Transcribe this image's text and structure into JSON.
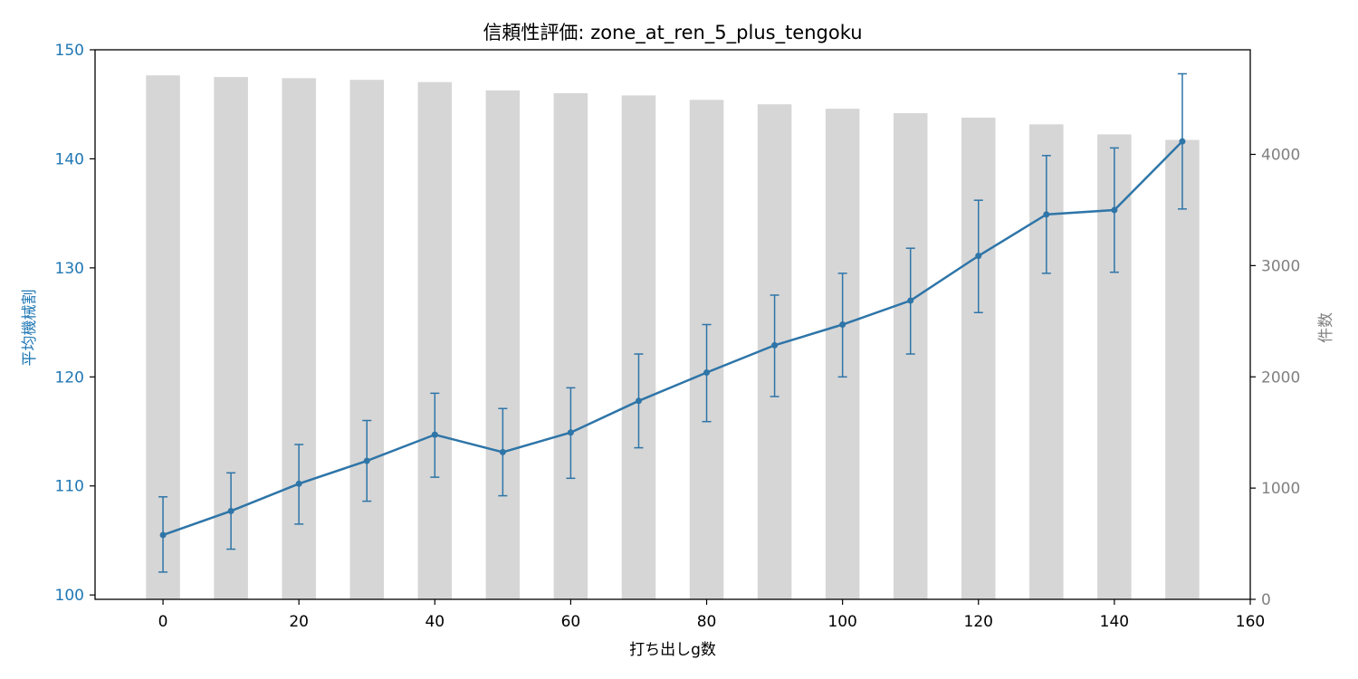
{
  "chart_data": {
    "type": "bar+line",
    "title": "信頼性評価: zone_at_ren_5_plus_tengoku",
    "xlabel": "打ち出しg数",
    "ylabel_left": "平均機械割",
    "ylabel_right": "件数",
    "x": [
      0,
      10,
      20,
      30,
      40,
      50,
      60,
      70,
      80,
      90,
      100,
      110,
      120,
      130,
      140,
      150
    ],
    "xlim": [
      -10,
      160
    ],
    "xticks": [
      0,
      20,
      40,
      60,
      80,
      100,
      120,
      140,
      160
    ],
    "bars": {
      "name": "件数",
      "values": [
        4710,
        4695,
        4685,
        4670,
        4650,
        4575,
        4550,
        4530,
        4490,
        4450,
        4410,
        4370,
        4330,
        4270,
        4180,
        4130
      ]
    },
    "line": {
      "name": "平均機械割",
      "values": [
        105.5,
        107.7,
        110.2,
        112.3,
        114.7,
        113.1,
        114.9,
        117.8,
        120.4,
        122.9,
        124.8,
        127.0,
        131.1,
        134.9,
        135.3,
        141.6
      ],
      "err_low": [
        102.1,
        104.2,
        106.5,
        108.6,
        110.8,
        109.1,
        110.7,
        113.5,
        115.9,
        118.2,
        120.0,
        122.1,
        125.9,
        129.5,
        129.6,
        135.4
      ],
      "err_high": [
        109.0,
        111.2,
        113.8,
        116.0,
        118.5,
        117.1,
        119.0,
        122.1,
        124.8,
        127.5,
        129.5,
        131.8,
        136.2,
        140.3,
        141.0,
        147.8
      ]
    },
    "ylim_left": [
      99.6,
      150
    ],
    "yticks_left": [
      100,
      110,
      120,
      130,
      140,
      150
    ],
    "ylim_right": [
      0,
      4940
    ],
    "yticks_right": [
      0,
      1000,
      2000,
      3000,
      4000
    ],
    "colors": {
      "line": "#2e75a8",
      "bar": "#d6d6d6",
      "right_axis": "#808080",
      "left_axis": "#1f77b4"
    },
    "grid": false
  }
}
